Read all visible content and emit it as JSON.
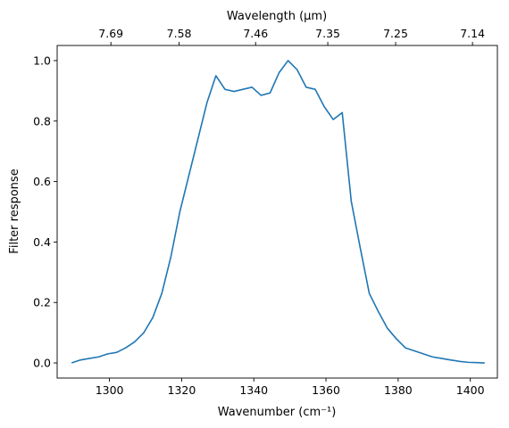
{
  "chart_data": {
    "type": "line",
    "xlabel": "Wavenumber (cm⁻¹)",
    "ylabel": "Filter response",
    "top_xlabel": "Wavelength (μm)",
    "xlim": [
      1285.5,
      1407.5
    ],
    "ylim": [
      -0.05,
      1.05
    ],
    "x_ticks": [
      1300,
      1320,
      1340,
      1360,
      1380,
      1400
    ],
    "y_ticks": [
      0.0,
      0.2,
      0.4,
      0.6,
      0.8,
      1.0
    ],
    "top_ticks": [
      {
        "label": "7.69",
        "wavenumber": 1300.4
      },
      {
        "label": "7.58",
        "wavenumber": 1319.3
      },
      {
        "label": "7.46",
        "wavenumber": 1340.5
      },
      {
        "label": "7.35",
        "wavenumber": 1360.5
      },
      {
        "label": "7.25",
        "wavenumber": 1379.3
      },
      {
        "label": "7.14",
        "wavenumber": 1400.6
      }
    ],
    "line_color": "#1f77b4",
    "series": [
      {
        "x": [
          1289.5,
          1292,
          1294.5,
          1297,
          1299.5,
          1302,
          1304.5,
          1307,
          1309.5,
          1312,
          1314.5,
          1317,
          1319.5,
          1322,
          1324.5,
          1327,
          1329.5,
          1332,
          1334.5,
          1337,
          1339.5,
          1342,
          1344.5,
          1347,
          1349.5,
          1352,
          1354.5,
          1357,
          1359.5,
          1362,
          1364.5,
          1367,
          1369.5,
          1372,
          1374.5,
          1377,
          1379.5,
          1382,
          1384.5,
          1387,
          1389.5,
          1392,
          1394.5,
          1397,
          1399.5,
          1402,
          1404
        ],
        "y": [
          0.0,
          0.01,
          0.015,
          0.02,
          0.03,
          0.035,
          0.05,
          0.07,
          0.1,
          0.15,
          0.23,
          0.35,
          0.5,
          0.62,
          0.74,
          0.86,
          0.95,
          0.905,
          0.898,
          0.905,
          0.912,
          0.885,
          0.893,
          0.96,
          1.0,
          0.97,
          0.912,
          0.905,
          0.848,
          0.805,
          0.828,
          0.535,
          0.38,
          0.23,
          0.17,
          0.115,
          0.08,
          0.05,
          0.04,
          0.03,
          0.02,
          0.015,
          0.01,
          0.005,
          0.002,
          0.001,
          0.0
        ]
      }
    ]
  }
}
